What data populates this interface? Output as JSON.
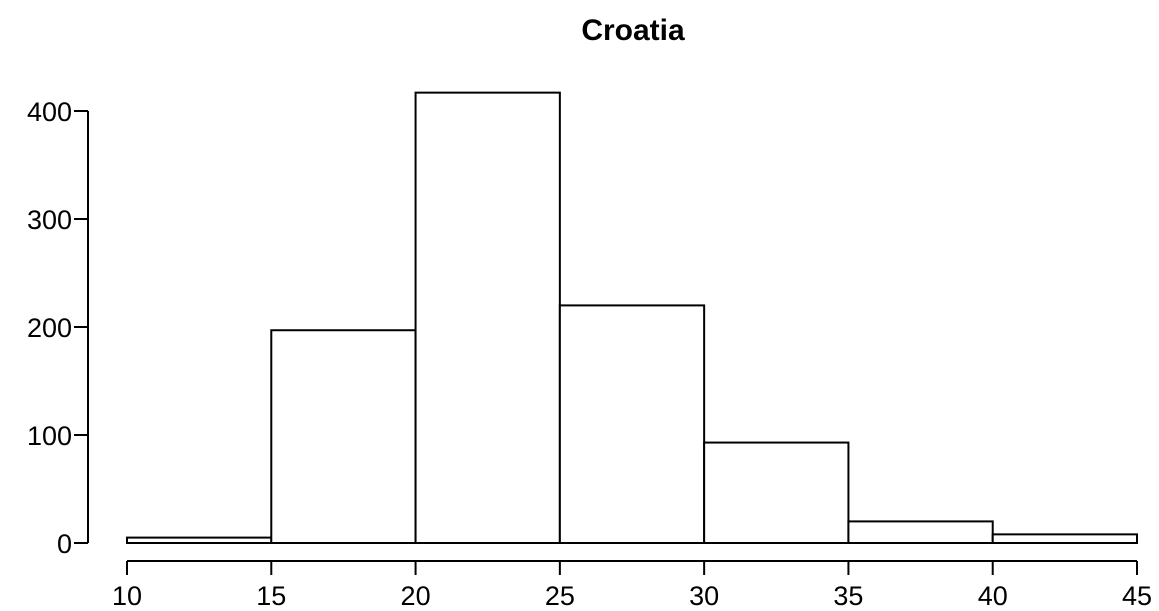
{
  "chart_data": {
    "type": "bar",
    "title": "Croatia",
    "xlabel": "",
    "ylabel": "",
    "bins": [
      {
        "x0": 10,
        "x1": 15,
        "value": 5
      },
      {
        "x0": 15,
        "x1": 20,
        "value": 197
      },
      {
        "x0": 20,
        "x1": 25,
        "value": 417
      },
      {
        "x0": 25,
        "x1": 30,
        "value": 220
      },
      {
        "x0": 30,
        "x1": 35,
        "value": 93
      },
      {
        "x0": 35,
        "x1": 40,
        "value": 20
      },
      {
        "x0": 40,
        "x1": 45,
        "value": 8
      }
    ],
    "xlim": [
      10,
      45
    ],
    "ylim": [
      0,
      400
    ],
    "x_ticks": [
      "10",
      "15",
      "20",
      "25",
      "30",
      "35",
      "40",
      "45"
    ],
    "y_ticks": [
      "0",
      "100",
      "200",
      "300",
      "400"
    ],
    "grid": false,
    "colors": {
      "bar_fill": "#ffffff",
      "bar_stroke": "#000000"
    }
  }
}
